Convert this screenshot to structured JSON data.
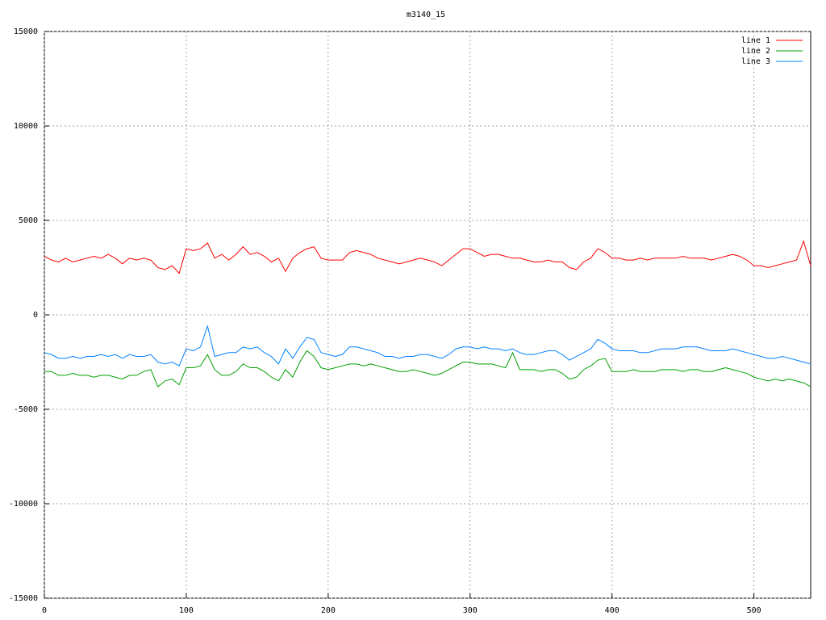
{
  "chart_data": {
    "type": "line",
    "title": "m3140_15",
    "x": [
      0,
      5,
      10,
      15,
      20,
      25,
      30,
      35,
      40,
      45,
      50,
      55,
      60,
      65,
      70,
      75,
      80,
      85,
      90,
      95,
      100,
      105,
      110,
      115,
      120,
      125,
      130,
      135,
      140,
      145,
      150,
      155,
      160,
      165,
      170,
      175,
      180,
      185,
      190,
      195,
      200,
      205,
      210,
      215,
      220,
      225,
      230,
      235,
      240,
      245,
      250,
      255,
      260,
      265,
      270,
      275,
      280,
      285,
      290,
      295,
      300,
      305,
      310,
      315,
      320,
      325,
      330,
      335,
      340,
      345,
      350,
      355,
      360,
      365,
      370,
      375,
      380,
      385,
      390,
      395,
      400,
      405,
      410,
      415,
      420,
      425,
      430,
      435,
      440,
      445,
      450,
      455,
      460,
      465,
      470,
      475,
      480,
      485,
      490,
      495,
      500,
      505,
      510,
      515,
      520,
      525,
      530,
      535,
      540
    ],
    "series": [
      {
        "name": "line 1",
        "color": "#ff0000",
        "values": [
          3100,
          2900,
          2800,
          3000,
          2800,
          2900,
          3000,
          3100,
          3000,
          3200,
          3000,
          2700,
          3000,
          2900,
          3000,
          2900,
          2500,
          2400,
          2600,
          2200,
          3500,
          3400,
          3500,
          3800,
          3000,
          3200,
          2900,
          3200,
          3600,
          3200,
          3300,
          3100,
          2800,
          3000,
          2300,
          3000,
          3300,
          3500,
          3600,
          3000,
          2900,
          2900,
          2900,
          3300,
          3400,
          3300,
          3200,
          3000,
          2900,
          2800,
          2700,
          2800,
          2900,
          3000,
          2900,
          2800,
          2600,
          2900,
          3200,
          3500,
          3500,
          3300,
          3100,
          3200,
          3200,
          3100,
          3000,
          3000,
          2900,
          2800,
          2800,
          2900,
          2800,
          2800,
          2500,
          2400,
          2800,
          3000,
          3500,
          3300,
          3000,
          3000,
          2900,
          2900,
          3000,
          2900,
          3000,
          3000,
          3000,
          3000,
          3100,
          3000,
          3000,
          3000,
          2900,
          3000,
          3100,
          3200,
          3100,
          2900,
          2600,
          2600,
          2500,
          2600,
          2700,
          2800,
          2900,
          3900,
          2600
        ]
      },
      {
        "name": "line 2",
        "color": "#00a000",
        "values": [
          -3000,
          -3000,
          -3200,
          -3200,
          -3100,
          -3200,
          -3200,
          -3300,
          -3200,
          -3200,
          -3300,
          -3400,
          -3200,
          -3200,
          -3000,
          -2900,
          -3800,
          -3500,
          -3400,
          -3700,
          -2800,
          -2800,
          -2700,
          -2100,
          -2900,
          -3200,
          -3200,
          -3000,
          -2600,
          -2800,
          -2800,
          -3000,
          -3300,
          -3500,
          -2900,
          -3300,
          -2500,
          -1900,
          -2200,
          -2800,
          -2900,
          -2800,
          -2700,
          -2600,
          -2600,
          -2700,
          -2600,
          -2700,
          -2800,
          -2900,
          -3000,
          -3000,
          -2900,
          -3000,
          -3100,
          -3200,
          -3100,
          -2900,
          -2700,
          -2500,
          -2500,
          -2600,
          -2600,
          -2600,
          -2700,
          -2800,
          -2000,
          -2900,
          -2900,
          -2900,
          -3000,
          -2900,
          -2900,
          -3100,
          -3400,
          -3300,
          -2900,
          -2700,
          -2400,
          -2300,
          -3000,
          -3000,
          -3000,
          -2900,
          -3000,
          -3000,
          -3000,
          -2900,
          -2900,
          -2900,
          -3000,
          -2900,
          -2900,
          -3000,
          -3000,
          -2900,
          -2800,
          -2900,
          -3000,
          -3100,
          -3300,
          -3400,
          -3500,
          -3400,
          -3500,
          -3400,
          -3500,
          -3600,
          -3800
        ]
      },
      {
        "name": "line 3",
        "color": "#0080ff",
        "values": [
          -2000,
          -2100,
          -2300,
          -2300,
          -2200,
          -2300,
          -2200,
          -2200,
          -2100,
          -2200,
          -2100,
          -2300,
          -2100,
          -2200,
          -2200,
          -2100,
          -2500,
          -2600,
          -2500,
          -2700,
          -1800,
          -1900,
          -1700,
          -600,
          -2200,
          -2100,
          -2000,
          -2000,
          -1700,
          -1800,
          -1700,
          -2000,
          -2200,
          -2600,
          -1800,
          -2300,
          -1700,
          -1200,
          -1300,
          -2000,
          -2100,
          -2200,
          -2100,
          -1700,
          -1700,
          -1800,
          -1900,
          -2000,
          -2200,
          -2200,
          -2300,
          -2200,
          -2200,
          -2100,
          -2100,
          -2200,
          -2300,
          -2100,
          -1800,
          -1700,
          -1700,
          -1800,
          -1700,
          -1800,
          -1800,
          -1900,
          -1800,
          -2000,
          -2100,
          -2100,
          -2000,
          -1900,
          -1900,
          -2100,
          -2400,
          -2200,
          -2000,
          -1800,
          -1300,
          -1500,
          -1800,
          -1900,
          -1900,
          -1900,
          -2000,
          -2000,
          -1900,
          -1800,
          -1800,
          -1800,
          -1700,
          -1700,
          -1700,
          -1800,
          -1900,
          -1900,
          -1900,
          -1800,
          -1900,
          -2000,
          -2100,
          -2200,
          -2300,
          -2300,
          -2200,
          -2300,
          -2400,
          -2500,
          -2600
        ]
      }
    ],
    "xlim": [
      0,
      540
    ],
    "xticks": [
      0,
      100,
      200,
      300,
      400,
      500
    ],
    "ylim": [
      -15000,
      15000
    ],
    "yticks": [
      -15000,
      -10000,
      -5000,
      0,
      5000,
      10000,
      15000
    ],
    "grid": true,
    "legend": "top-right"
  }
}
